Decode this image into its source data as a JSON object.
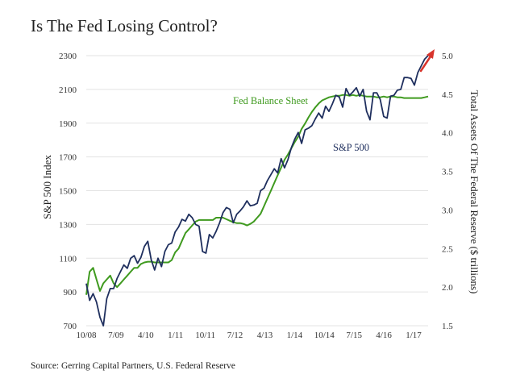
{
  "title": "Is The Fed Losing Control?",
  "source": "Source: Gerring Capital Partners, U.S. Federal Reserve",
  "chart_data": {
    "type": "line",
    "title": "Is The Fed Losing Control?",
    "ylabel": "S&P 500 Index",
    "y2label": "Total Assets Of The Federal Reserve ($ trillions)",
    "ylim": [
      700,
      2300
    ],
    "y2lim": [
      1.5,
      5.0
    ],
    "x_ticks": [
      "10/08",
      "7/09",
      "4/10",
      "1/11",
      "10/11",
      "7/12",
      "4/13",
      "1/14",
      "10/14",
      "7/15",
      "4/16",
      "1/17"
    ],
    "y_ticks": [
      "700",
      "900",
      "1100",
      "1300",
      "1500",
      "1700",
      "1900",
      "2100",
      "2300"
    ],
    "y2_ticks": [
      "1.5",
      "2.0",
      "2.5",
      "3.0",
      "3.5",
      "4.0",
      "4.5",
      "5.0"
    ],
    "grid": true,
    "x_dates": [
      "2008-10-01",
      "2017-02-01"
    ],
    "series": [
      {
        "name": "S&P 500",
        "axis": "left",
        "color": "#1f2f5e",
        "points": [
          [
            "2008-10-01",
            950
          ],
          [
            "2008-11-01",
            850
          ],
          [
            "2008-12-01",
            890
          ],
          [
            "2009-01-01",
            840
          ],
          [
            "2009-02-01",
            750
          ],
          [
            "2009-03-01",
            700
          ],
          [
            "2009-04-01",
            860
          ],
          [
            "2009-05-01",
            920
          ],
          [
            "2009-06-01",
            920
          ],
          [
            "2009-07-01",
            980
          ],
          [
            "2009-08-01",
            1020
          ],
          [
            "2009-09-01",
            1060
          ],
          [
            "2009-10-01",
            1040
          ],
          [
            "2009-11-01",
            1100
          ],
          [
            "2009-12-01",
            1115
          ],
          [
            "2010-01-01",
            1070
          ],
          [
            "2010-02-01",
            1105
          ],
          [
            "2010-03-01",
            1170
          ],
          [
            "2010-04-01",
            1200
          ],
          [
            "2010-05-01",
            1090
          ],
          [
            "2010-06-01",
            1030
          ],
          [
            "2010-07-01",
            1100
          ],
          [
            "2010-08-01",
            1050
          ],
          [
            "2010-09-01",
            1140
          ],
          [
            "2010-10-01",
            1180
          ],
          [
            "2010-11-01",
            1190
          ],
          [
            "2010-12-01",
            1255
          ],
          [
            "2011-01-01",
            1285
          ],
          [
            "2011-02-01",
            1330
          ],
          [
            "2011-03-01",
            1320
          ],
          [
            "2011-04-01",
            1360
          ],
          [
            "2011-05-01",
            1340
          ],
          [
            "2011-06-01",
            1300
          ],
          [
            "2011-07-01",
            1290
          ],
          [
            "2011-08-01",
            1140
          ],
          [
            "2011-09-01",
            1130
          ],
          [
            "2011-10-01",
            1240
          ],
          [
            "2011-11-01",
            1220
          ],
          [
            "2011-12-01",
            1260
          ],
          [
            "2012-01-01",
            1310
          ],
          [
            "2012-02-01",
            1370
          ],
          [
            "2012-03-01",
            1400
          ],
          [
            "2012-04-01",
            1390
          ],
          [
            "2012-05-01",
            1310
          ],
          [
            "2012-06-01",
            1360
          ],
          [
            "2012-07-01",
            1380
          ],
          [
            "2012-08-01",
            1405
          ],
          [
            "2012-09-01",
            1440
          ],
          [
            "2012-10-01",
            1410
          ],
          [
            "2012-11-01",
            1415
          ],
          [
            "2012-12-01",
            1425
          ],
          [
            "2013-01-01",
            1500
          ],
          [
            "2013-02-01",
            1515
          ],
          [
            "2013-03-01",
            1560
          ],
          [
            "2013-04-01",
            1595
          ],
          [
            "2013-05-01",
            1630
          ],
          [
            "2013-06-01",
            1605
          ],
          [
            "2013-07-01",
            1690
          ],
          [
            "2013-08-01",
            1635
          ],
          [
            "2013-09-01",
            1685
          ],
          [
            "2013-10-01",
            1755
          ],
          [
            "2013-11-01",
            1805
          ],
          [
            "2013-12-01",
            1845
          ],
          [
            "2014-01-01",
            1780
          ],
          [
            "2014-02-01",
            1860
          ],
          [
            "2014-03-01",
            1870
          ],
          [
            "2014-04-01",
            1885
          ],
          [
            "2014-05-01",
            1925
          ],
          [
            "2014-06-01",
            1960
          ],
          [
            "2014-07-01",
            1930
          ],
          [
            "2014-08-01",
            2000
          ],
          [
            "2014-09-01",
            1970
          ],
          [
            "2014-10-01",
            2015
          ],
          [
            "2014-11-01",
            2065
          ],
          [
            "2014-12-01",
            2055
          ],
          [
            "2015-01-01",
            1995
          ],
          [
            "2015-02-01",
            2105
          ],
          [
            "2015-03-01",
            2065
          ],
          [
            "2015-04-01",
            2085
          ],
          [
            "2015-05-01",
            2110
          ],
          [
            "2015-06-01",
            2060
          ],
          [
            "2015-07-01",
            2100
          ],
          [
            "2015-08-01",
            1970
          ],
          [
            "2015-09-01",
            1920
          ],
          [
            "2015-10-01",
            2080
          ],
          [
            "2015-11-01",
            2080
          ],
          [
            "2015-12-01",
            2040
          ],
          [
            "2016-01-01",
            1940
          ],
          [
            "2016-02-01",
            1930
          ],
          [
            "2016-03-01",
            2060
          ],
          [
            "2016-04-01",
            2065
          ],
          [
            "2016-05-01",
            2095
          ],
          [
            "2016-06-01",
            2100
          ],
          [
            "2016-07-01",
            2170
          ],
          [
            "2016-08-01",
            2170
          ],
          [
            "2016-09-01",
            2165
          ],
          [
            "2016-10-01",
            2125
          ],
          [
            "2016-11-01",
            2200
          ],
          [
            "2016-12-01",
            2240
          ],
          [
            "2017-01-01",
            2280
          ],
          [
            "2017-02-01",
            2300
          ]
        ]
      },
      {
        "name": "Fed Balance Sheet",
        "axis": "right",
        "color": "#3f9a1f",
        "points": [
          [
            "2008-10-01",
            1.9
          ],
          [
            "2008-11-01",
            2.2
          ],
          [
            "2008-12-01",
            2.25
          ],
          [
            "2009-01-01",
            2.1
          ],
          [
            "2009-02-01",
            1.95
          ],
          [
            "2009-03-01",
            2.05
          ],
          [
            "2009-04-01",
            2.1
          ],
          [
            "2009-05-01",
            2.15
          ],
          [
            "2009-06-01",
            2.05
          ],
          [
            "2009-07-01",
            2.0
          ],
          [
            "2009-08-01",
            2.05
          ],
          [
            "2009-09-01",
            2.1
          ],
          [
            "2009-10-01",
            2.15
          ],
          [
            "2009-11-01",
            2.2
          ],
          [
            "2009-12-01",
            2.25
          ],
          [
            "2010-01-01",
            2.25
          ],
          [
            "2010-02-01",
            2.3
          ],
          [
            "2010-03-01",
            2.32
          ],
          [
            "2010-04-01",
            2.33
          ],
          [
            "2010-05-01",
            2.33
          ],
          [
            "2010-06-01",
            2.32
          ],
          [
            "2010-07-01",
            2.32
          ],
          [
            "2010-08-01",
            2.32
          ],
          [
            "2010-09-01",
            2.32
          ],
          [
            "2010-10-01",
            2.32
          ],
          [
            "2010-11-01",
            2.35
          ],
          [
            "2010-12-01",
            2.45
          ],
          [
            "2011-01-01",
            2.5
          ],
          [
            "2011-02-01",
            2.6
          ],
          [
            "2011-03-01",
            2.7
          ],
          [
            "2011-04-01",
            2.75
          ],
          [
            "2011-05-01",
            2.8
          ],
          [
            "2011-06-01",
            2.85
          ],
          [
            "2011-07-01",
            2.87
          ],
          [
            "2011-08-01",
            2.87
          ],
          [
            "2011-09-01",
            2.87
          ],
          [
            "2011-10-01",
            2.87
          ],
          [
            "2011-11-01",
            2.87
          ],
          [
            "2011-12-01",
            2.9
          ],
          [
            "2012-01-01",
            2.9
          ],
          [
            "2012-02-01",
            2.9
          ],
          [
            "2012-03-01",
            2.88
          ],
          [
            "2012-04-01",
            2.86
          ],
          [
            "2012-05-01",
            2.84
          ],
          [
            "2012-06-01",
            2.83
          ],
          [
            "2012-07-01",
            2.83
          ],
          [
            "2012-08-01",
            2.82
          ],
          [
            "2012-09-01",
            2.8
          ],
          [
            "2012-10-01",
            2.82
          ],
          [
            "2012-11-01",
            2.85
          ],
          [
            "2012-12-01",
            2.9
          ],
          [
            "2013-01-01",
            2.95
          ],
          [
            "2013-02-01",
            3.05
          ],
          [
            "2013-03-01",
            3.15
          ],
          [
            "2013-04-01",
            3.25
          ],
          [
            "2013-05-01",
            3.35
          ],
          [
            "2013-06-01",
            3.45
          ],
          [
            "2013-07-01",
            3.55
          ],
          [
            "2013-08-01",
            3.65
          ],
          [
            "2013-09-01",
            3.72
          ],
          [
            "2013-10-01",
            3.8
          ],
          [
            "2013-11-01",
            3.88
          ],
          [
            "2013-12-01",
            3.95
          ],
          [
            "2014-01-01",
            4.05
          ],
          [
            "2014-02-01",
            4.12
          ],
          [
            "2014-03-01",
            4.2
          ],
          [
            "2014-04-01",
            4.27
          ],
          [
            "2014-05-01",
            4.33
          ],
          [
            "2014-06-01",
            4.38
          ],
          [
            "2014-07-01",
            4.42
          ],
          [
            "2014-08-01",
            4.44
          ],
          [
            "2014-09-01",
            4.46
          ],
          [
            "2014-10-01",
            4.47
          ],
          [
            "2014-11-01",
            4.48
          ],
          [
            "2014-12-01",
            4.48
          ],
          [
            "2015-01-01",
            4.49
          ],
          [
            "2015-02-01",
            4.49
          ],
          [
            "2015-03-01",
            4.48
          ],
          [
            "2015-04-01",
            4.49
          ],
          [
            "2015-05-01",
            4.48
          ],
          [
            "2015-06-01",
            4.49
          ],
          [
            "2015-07-01",
            4.48
          ],
          [
            "2015-08-01",
            4.47
          ],
          [
            "2015-09-01",
            4.47
          ],
          [
            "2015-10-01",
            4.47
          ],
          [
            "2015-11-01",
            4.46
          ],
          [
            "2015-12-01",
            4.46
          ],
          [
            "2016-01-01",
            4.47
          ],
          [
            "2016-02-01",
            4.46
          ],
          [
            "2016-03-01",
            4.47
          ],
          [
            "2016-04-01",
            4.47
          ],
          [
            "2016-05-01",
            4.46
          ],
          [
            "2016-06-01",
            4.46
          ],
          [
            "2016-07-01",
            4.45
          ],
          [
            "2016-08-01",
            4.45
          ],
          [
            "2016-09-01",
            4.45
          ],
          [
            "2016-10-01",
            4.45
          ],
          [
            "2016-11-01",
            4.45
          ],
          [
            "2016-12-01",
            4.45
          ],
          [
            "2017-01-01",
            4.46
          ],
          [
            "2017-02-01",
            4.47
          ]
        ]
      }
    ],
    "annotations": [
      {
        "text": "Fed Balance Sheet",
        "color": "#3f9a1f"
      },
      {
        "text": "S&P 500",
        "color": "#1f2f5e"
      }
    ],
    "arrow_color": "#d8342c"
  }
}
